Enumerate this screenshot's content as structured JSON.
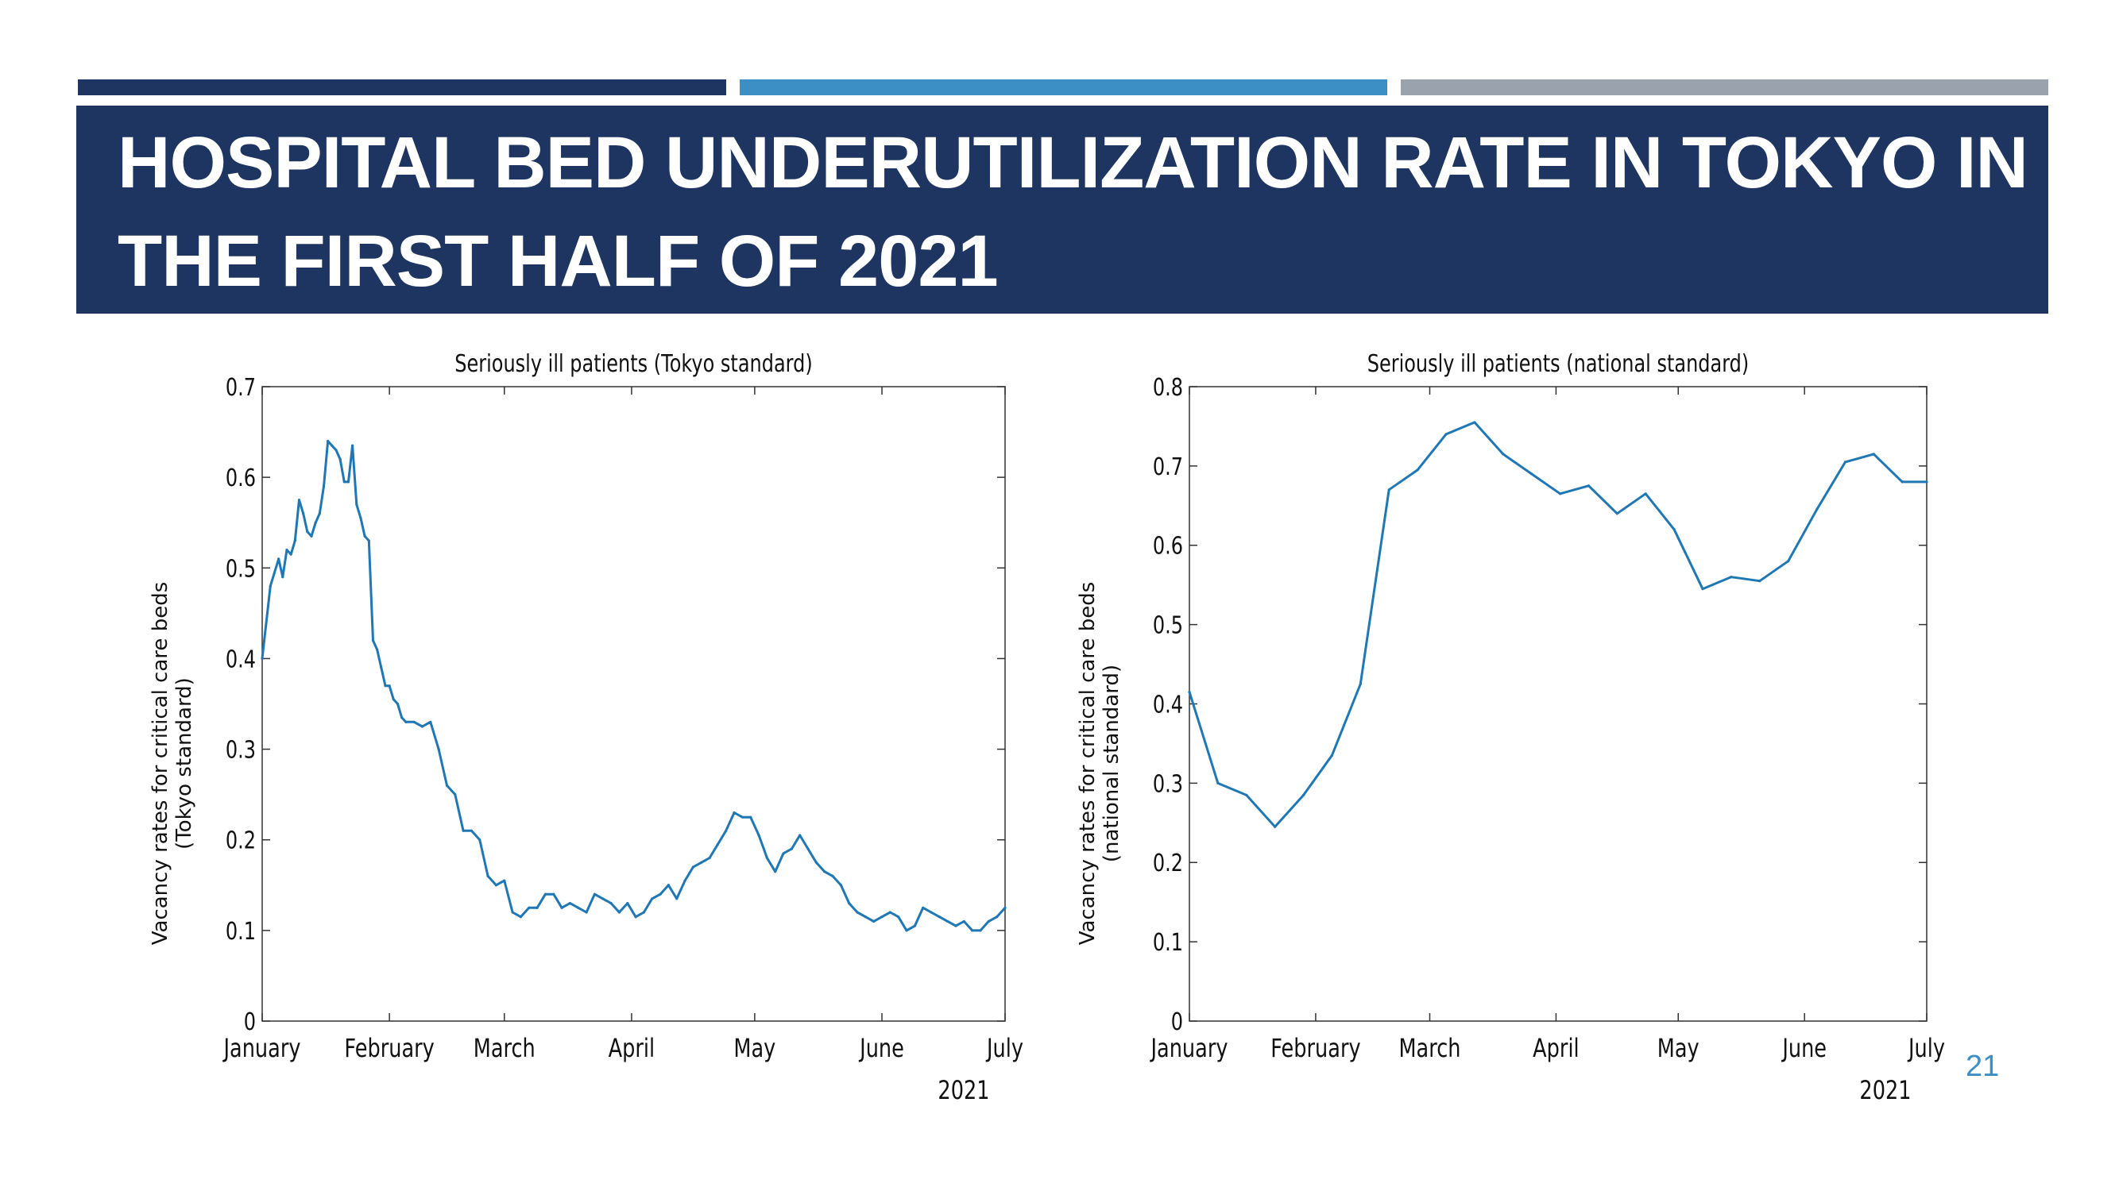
{
  "slide": {
    "title": "HOSPITAL BED UNDERUTILIZATION RATE IN TOKYO IN THE FIRST HALF OF 2021",
    "page_number": "21",
    "colors": {
      "banner": "#1e3461",
      "accent_1": "#1e3461",
      "accent_2": "#3b8fc4",
      "accent_3": "#9aa3ad",
      "line": "#1f77b4"
    }
  },
  "chart_data": [
    {
      "type": "line",
      "title": "Seriously ill patients (Tokyo standard)",
      "ylabel_lines": [
        "Vacancy rates for critical care beds",
        "(Tokyo standard)"
      ],
      "xlabel": "2021",
      "x_ticks": [
        "January",
        "February",
        "March",
        "April",
        "May",
        "June",
        "July"
      ],
      "xlim": [
        "2021-01-01",
        "2021-07-01"
      ],
      "ylim": [
        0,
        0.7
      ],
      "y_ticks": [
        "0",
        "0.1",
        "0.2",
        "0.3",
        "0.4",
        "0.5",
        "0.6",
        "0.7"
      ],
      "y_tick_values": [
        0,
        0.1,
        0.2,
        0.3,
        0.4,
        0.5,
        0.6,
        0.7
      ],
      "grid": false,
      "series": [
        {
          "x": [
            "2021-01-01",
            "2021-01-03",
            "2021-01-05",
            "2021-01-06",
            "2021-01-07",
            "2021-01-08",
            "2021-01-09",
            "2021-01-10",
            "2021-01-11",
            "2021-01-12",
            "2021-01-13",
            "2021-01-14",
            "2021-01-15",
            "2021-01-16",
            "2021-01-17",
            "2021-01-18",
            "2021-01-19",
            "2021-01-20",
            "2021-01-21",
            "2021-01-22",
            "2021-01-23",
            "2021-01-24",
            "2021-01-25",
            "2021-01-26",
            "2021-01-27",
            "2021-01-28",
            "2021-01-29",
            "2021-01-30",
            "2021-01-31",
            "2021-02-01",
            "2021-02-02",
            "2021-02-03",
            "2021-02-04",
            "2021-02-05",
            "2021-02-07",
            "2021-02-09",
            "2021-02-11",
            "2021-02-13",
            "2021-02-15",
            "2021-02-17",
            "2021-02-19",
            "2021-02-21",
            "2021-02-23",
            "2021-02-25",
            "2021-02-27",
            "2021-03-01",
            "2021-03-03",
            "2021-03-05",
            "2021-03-07",
            "2021-03-09",
            "2021-03-11",
            "2021-03-13",
            "2021-03-15",
            "2021-03-17",
            "2021-03-19",
            "2021-03-21",
            "2021-03-23",
            "2021-03-25",
            "2021-03-27",
            "2021-03-29",
            "2021-03-31",
            "2021-04-02",
            "2021-04-04",
            "2021-04-06",
            "2021-04-08",
            "2021-04-10",
            "2021-04-12",
            "2021-04-14",
            "2021-04-16",
            "2021-04-18",
            "2021-04-20",
            "2021-04-22",
            "2021-04-24",
            "2021-04-26",
            "2021-04-28",
            "2021-04-30",
            "2021-05-02",
            "2021-05-04",
            "2021-05-06",
            "2021-05-08",
            "2021-05-10",
            "2021-05-12",
            "2021-05-14",
            "2021-05-16",
            "2021-05-18",
            "2021-05-20",
            "2021-05-22",
            "2021-05-24",
            "2021-05-26",
            "2021-05-28",
            "2021-05-30",
            "2021-06-01",
            "2021-06-03",
            "2021-06-05",
            "2021-06-07",
            "2021-06-09",
            "2021-06-11",
            "2021-06-13",
            "2021-06-15",
            "2021-06-17",
            "2021-06-19",
            "2021-06-21",
            "2021-06-23",
            "2021-06-25",
            "2021-06-27",
            "2021-06-29",
            "2021-07-01"
          ],
          "y": [
            0.4,
            0.48,
            0.51,
            0.49,
            0.52,
            0.515,
            0.53,
            0.575,
            0.56,
            0.54,
            0.535,
            0.55,
            0.56,
            0.59,
            0.64,
            0.635,
            0.63,
            0.62,
            0.595,
            0.595,
            0.635,
            0.57,
            0.555,
            0.535,
            0.53,
            0.42,
            0.41,
            0.39,
            0.37,
            0.37,
            0.355,
            0.35,
            0.335,
            0.33,
            0.33,
            0.325,
            0.33,
            0.3,
            0.26,
            0.25,
            0.21,
            0.21,
            0.2,
            0.16,
            0.15,
            0.155,
            0.12,
            0.115,
            0.125,
            0.125,
            0.14,
            0.14,
            0.125,
            0.13,
            0.125,
            0.12,
            0.14,
            0.135,
            0.13,
            0.12,
            0.13,
            0.115,
            0.12,
            0.135,
            0.14,
            0.15,
            0.135,
            0.155,
            0.17,
            0.175,
            0.18,
            0.195,
            0.21,
            0.23,
            0.225,
            0.225,
            0.205,
            0.18,
            0.165,
            0.185,
            0.19,
            0.205,
            0.19,
            0.175,
            0.165,
            0.16,
            0.15,
            0.13,
            0.12,
            0.115,
            0.11,
            0.115,
            0.12,
            0.115,
            0.1,
            0.105,
            0.125,
            0.12,
            0.115,
            0.11,
            0.105,
            0.11,
            0.1,
            0.1,
            0.11,
            0.115,
            0.125
          ]
        }
      ]
    },
    {
      "type": "line",
      "title": "Seriously ill patients (national standard)",
      "ylabel_lines": [
        "Vacancy rates for critical care beds",
        "(national standard)"
      ],
      "xlabel": "2021",
      "x_ticks": [
        "January",
        "February",
        "March",
        "April",
        "May",
        "June",
        "July"
      ],
      "xlim": [
        "2021-01-01",
        "2021-07-01"
      ],
      "ylim": [
        0,
        0.8
      ],
      "y_ticks": [
        "0",
        "0.1",
        "0.2",
        "0.3",
        "0.4",
        "0.5",
        "0.6",
        "0.7",
        "0.8"
      ],
      "y_tick_values": [
        0,
        0.1,
        0.2,
        0.3,
        0.4,
        0.5,
        0.6,
        0.7,
        0.8
      ],
      "grid": false,
      "series": [
        {
          "x": [
            "2021-01-01",
            "2021-01-08",
            "2021-01-15",
            "2021-01-22",
            "2021-01-29",
            "2021-02-05",
            "2021-02-12",
            "2021-02-19",
            "2021-02-26",
            "2021-03-05",
            "2021-03-12",
            "2021-03-19",
            "2021-03-26",
            "2021-04-02",
            "2021-04-09",
            "2021-04-16",
            "2021-04-23",
            "2021-04-30",
            "2021-05-07",
            "2021-05-14",
            "2021-05-21",
            "2021-05-28",
            "2021-06-04",
            "2021-06-11",
            "2021-06-18",
            "2021-06-25",
            "2021-07-01"
          ],
          "y": [
            0.415,
            0.3,
            0.285,
            0.245,
            0.285,
            0.335,
            0.425,
            0.67,
            0.695,
            0.74,
            0.755,
            0.715,
            0.69,
            0.665,
            0.675,
            0.64,
            0.665,
            0.62,
            0.545,
            0.56,
            0.555,
            0.58,
            0.645,
            0.705,
            0.715,
            0.68,
            0.68
          ]
        }
      ]
    }
  ]
}
